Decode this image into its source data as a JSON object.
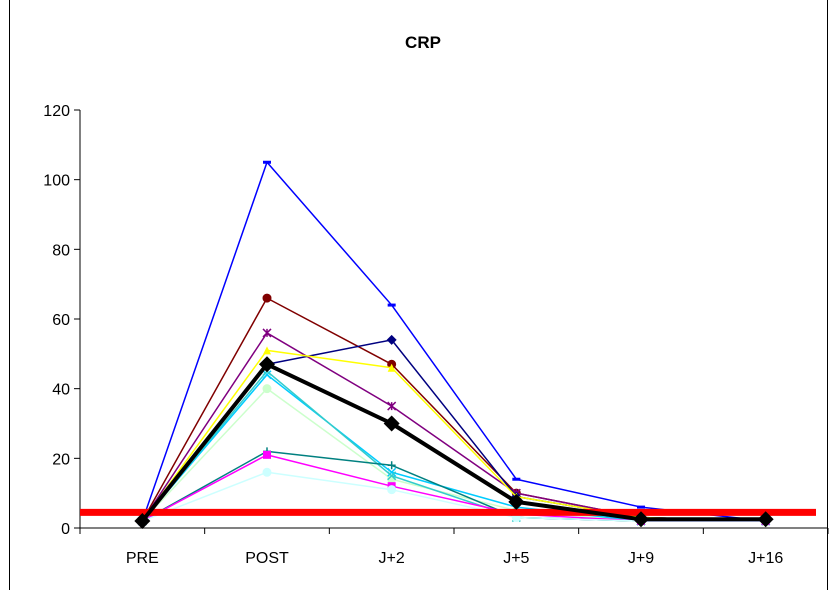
{
  "chart_data": {
    "type": "line",
    "title": "CRP",
    "xlabel": "",
    "ylabel": "",
    "categories": [
      "PRE",
      "POST",
      "J+2",
      "J+5",
      "J+9",
      "J+16"
    ],
    "ylim": [
      0,
      120
    ],
    "yticks": [
      0,
      20,
      40,
      60,
      80,
      100,
      120
    ],
    "grid": false,
    "legend": "none",
    "series": [
      {
        "color": "#0000FF",
        "marker": "dash",
        "values": [
          2,
          105,
          64,
          14,
          6,
          2
        ]
      },
      {
        "color": "#800000",
        "marker": "circle",
        "values": [
          2,
          66,
          47,
          10,
          3,
          2
        ]
      },
      {
        "color": "#800080",
        "marker": "star",
        "values": [
          2,
          56,
          35,
          10,
          3,
          2
        ]
      },
      {
        "color": "#000080",
        "marker": "diamond",
        "values": [
          2,
          47,
          54,
          9,
          3,
          2
        ]
      },
      {
        "color": "#FFFF00",
        "marker": "triangle",
        "values": [
          2,
          51,
          46,
          9,
          3,
          2
        ]
      },
      {
        "color": "#CCFFCC",
        "marker": "circle",
        "values": [
          2,
          40,
          14,
          5,
          2,
          2
        ]
      },
      {
        "color": "#00CCFF",
        "marker": "x",
        "values": [
          2,
          44,
          16,
          6,
          2,
          2
        ]
      },
      {
        "color": "#33CCCC",
        "marker": "x",
        "values": [
          2,
          45,
          15,
          3,
          2,
          2
        ]
      },
      {
        "color": "#008080",
        "marker": "plus",
        "values": [
          2,
          22,
          18,
          3,
          2,
          2
        ]
      },
      {
        "color": "#FF00FF",
        "marker": "square",
        "values": [
          2,
          21,
          12,
          4,
          2,
          2
        ]
      },
      {
        "color": "#CCFFFF",
        "marker": "circle",
        "values": [
          2,
          16,
          11,
          3,
          2,
          2
        ]
      },
      {
        "color": "#000000",
        "marker": "diamond",
        "bold": true,
        "values": [
          2,
          47,
          30,
          7.5,
          2.5,
          2.5
        ]
      }
    ],
    "reference_line": {
      "value": 4.5,
      "color": "#FF0000"
    }
  }
}
